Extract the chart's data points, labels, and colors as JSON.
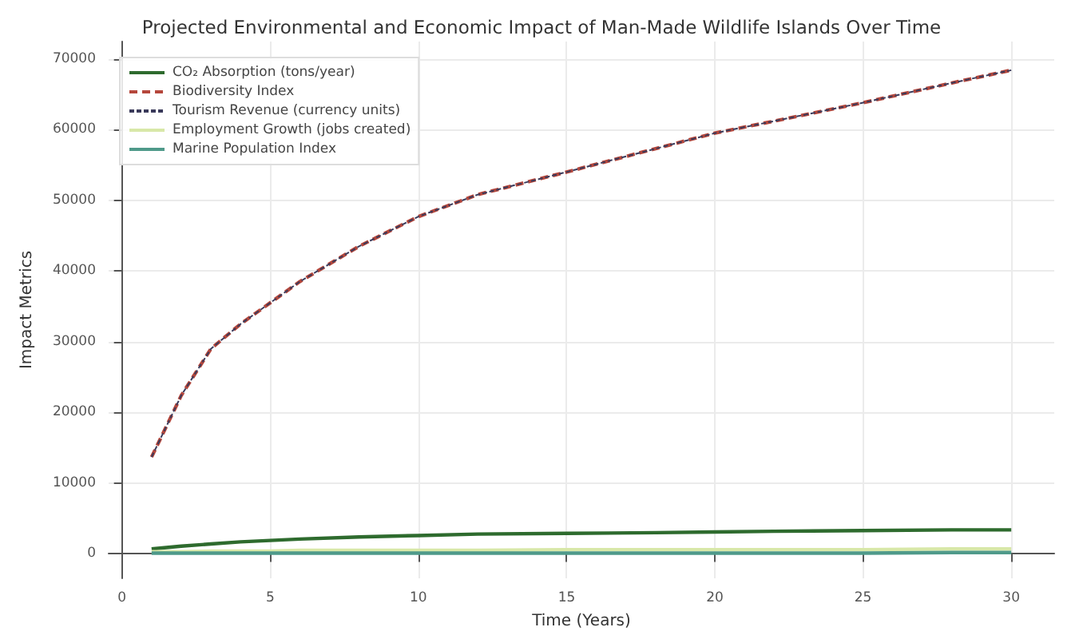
{
  "chart_data": {
    "type": "line",
    "title": "Projected Environmental and Economic Impact of Man-Made Wildlife Islands Over Time",
    "xlabel": "Time (Years)",
    "ylabel": "Impact Metrics",
    "x": [
      1,
      2,
      3,
      4,
      5,
      6,
      8,
      10,
      12,
      15,
      18,
      20,
      22,
      25,
      28,
      30
    ],
    "series": [
      {
        "name": "CO₂ Absorption (tons/year)",
        "color": "#2e6b2e",
        "line_style": "solid",
        "values": [
          700,
          1100,
          1400,
          1700,
          1900,
          2100,
          2400,
          2600,
          2800,
          2900,
          3000,
          3100,
          3200,
          3300,
          3400,
          3400
        ]
      },
      {
        "name": "Biodiversity Index",
        "color": "#b5473c",
        "line_style": "dashed",
        "values": [
          13700,
          22400,
          29000,
          32500,
          35500,
          38500,
          43500,
          47700,
          50800,
          54000,
          57300,
          59500,
          61200,
          63800,
          66600,
          68400
        ]
      },
      {
        "name": "Tourism Revenue (currency units)",
        "color": "#3a3a5a",
        "line_style": "dashed",
        "values": [
          13700,
          22400,
          29000,
          32500,
          35500,
          38500,
          43500,
          47700,
          50800,
          54000,
          57300,
          59500,
          61200,
          63800,
          66600,
          68400
        ]
      },
      {
        "name": "Employment Growth (jobs created)",
        "color": "#d8e8a8",
        "line_style": "solid",
        "values": [
          300,
          300,
          400,
          400,
          400,
          500,
          500,
          500,
          500,
          600,
          600,
          600,
          600,
          600,
          700,
          700
        ]
      },
      {
        "name": "Marine Population Index",
        "color": "#4f9a8a",
        "line_style": "solid",
        "values": [
          100,
          100,
          100,
          100,
          100,
          100,
          100,
          100,
          100,
          100,
          100,
          100,
          100,
          100,
          200,
          200
        ]
      }
    ],
    "xlim": [
      -0.45,
      31.45
    ],
    "xticks": [
      0,
      5,
      10,
      15,
      20,
      25,
      30
    ],
    "ylim": [
      -3450,
      72450
    ],
    "yticks": [
      0,
      10000,
      20000,
      30000,
      40000,
      50000,
      60000,
      70000
    ],
    "grid": true,
    "legend": "top left",
    "marker": "none"
  }
}
